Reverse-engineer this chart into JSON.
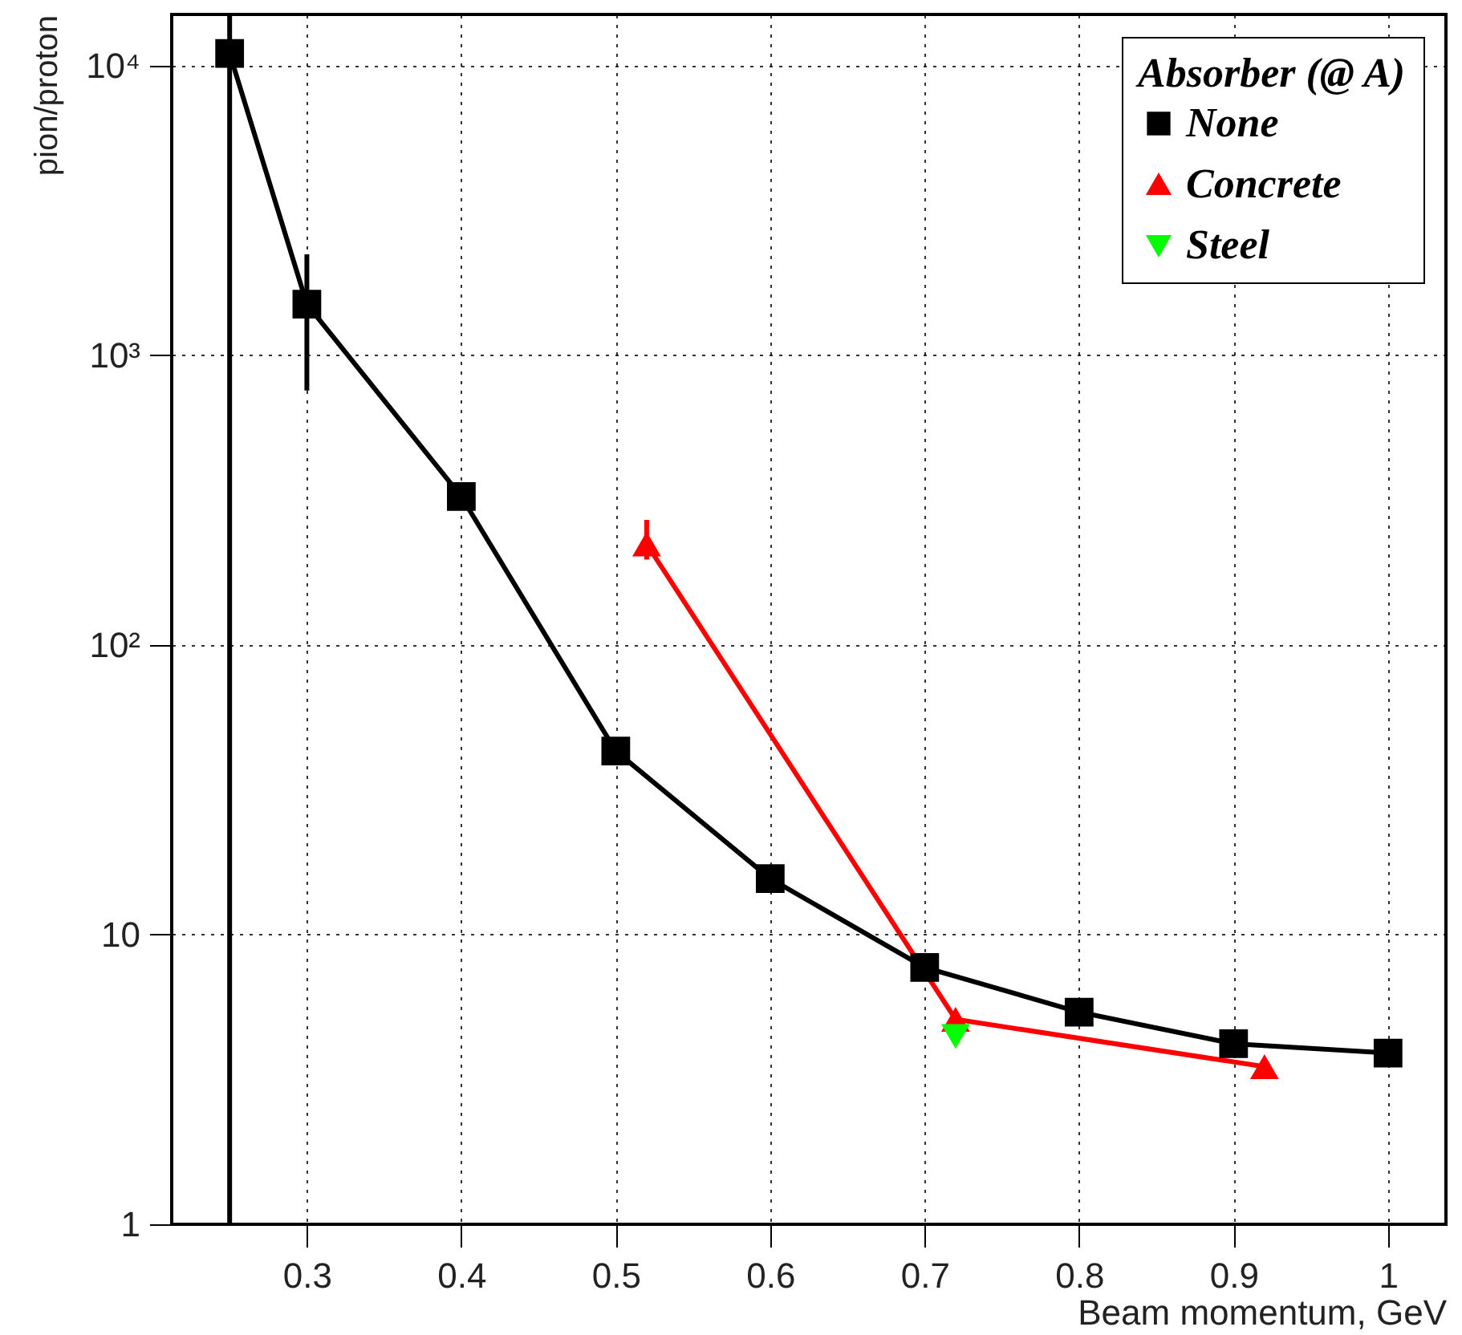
{
  "chart_data": {
    "type": "line",
    "xlabel": "Beam momentum, GeV",
    "ylabel": "pion/proton",
    "legend_title": "Absorber (@ A)",
    "log": "y",
    "grid": true,
    "legend": "top right",
    "line_style": "solid",
    "xlim": [
      0.2125,
      1.0375
    ],
    "xticks": [
      0.3,
      0.4,
      0.5,
      0.6,
      0.7,
      0.8,
      0.9,
      1
    ],
    "ylim": [
      1,
      15000
    ],
    "yticks": [
      1,
      10,
      {
        "value": 100,
        "label": "10²"
      },
      {
        "value": 1000,
        "label": "10³"
      },
      {
        "value": 10000,
        "label": "10⁴"
      }
    ],
    "series": [
      {
        "name": "None",
        "color": "#000000",
        "marker": "square",
        "x": [
          0.25,
          0.3,
          0.4,
          0.5,
          0.6,
          0.7,
          0.8,
          0.9,
          1
        ],
        "values": [
          11000,
          1500,
          325,
          43,
          15.6,
          7.7,
          5.4,
          4.2,
          3.9
        ],
        "errors": [
          [
            1,
            15000
          ],
          [
            755,
            2230
          ],
          null,
          null,
          null,
          null,
          null,
          null,
          null
        ]
      },
      {
        "name": "Concrete",
        "color": "#ff0000",
        "marker": "triangle",
        "x": [
          0.52,
          0.72,
          0.92
        ],
        "values": [
          223,
          5.1,
          3.5
        ],
        "errors": [
          [
            197,
            270
          ],
          null,
          null
        ]
      },
      {
        "name": "Steel",
        "color": "#00ff00",
        "marker": "triangle-down",
        "x": [
          0.72
        ],
        "values": [
          4.45
        ]
      }
    ]
  }
}
